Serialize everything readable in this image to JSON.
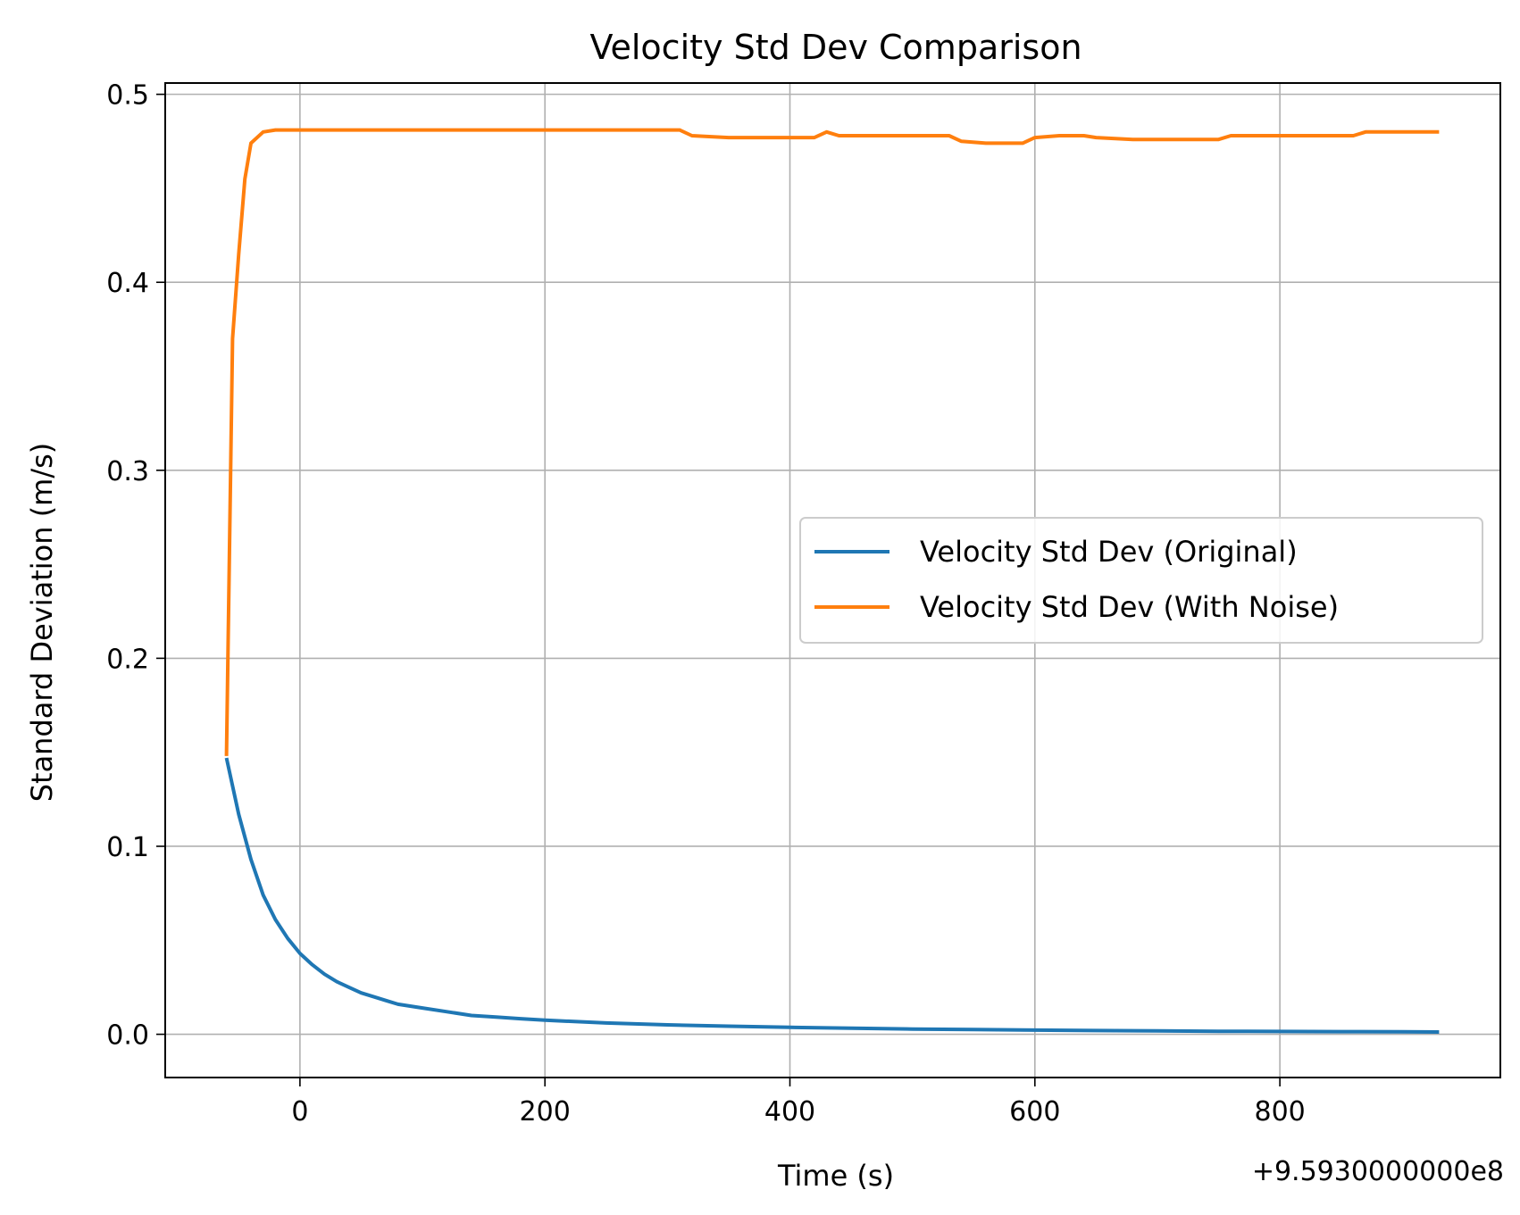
{
  "chart_data": {
    "type": "line",
    "title": "Velocity Std Dev Comparison",
    "xlabel": "Time (s)",
    "ylabel": "Standard Deviation (m/s)",
    "x_offset_label": "+9.5930000000e8",
    "xlim": [
      -110,
      980
    ],
    "ylim": [
      -0.023,
      0.506
    ],
    "xticks": [
      0,
      200,
      400,
      600,
      800
    ],
    "xtick_labels": [
      "0",
      "200",
      "400",
      "600",
      "800"
    ],
    "yticks": [
      0.0,
      0.1,
      0.2,
      0.3,
      0.4,
      0.5
    ],
    "ytick_labels": [
      "0.0",
      "0.1",
      "0.2",
      "0.3",
      "0.4",
      "0.5"
    ],
    "grid": true,
    "legend_position": "center-right",
    "series": [
      {
        "name": "Velocity Std Dev (Original)",
        "color": "#1f77b4",
        "x": [
          -60,
          -50,
          -40,
          -30,
          -20,
          -10,
          0,
          10,
          20,
          30,
          40,
          50,
          60,
          70,
          80,
          90,
          100,
          120,
          140,
          160,
          180,
          200,
          250,
          300,
          350,
          400,
          450,
          500,
          550,
          600,
          650,
          700,
          750,
          800,
          850,
          900,
          930
        ],
        "y": [
          0.147,
          0.117,
          0.093,
          0.074,
          0.061,
          0.051,
          0.043,
          0.037,
          0.032,
          0.028,
          0.025,
          0.022,
          0.02,
          0.018,
          0.016,
          0.015,
          0.014,
          0.012,
          0.01,
          0.0092,
          0.0083,
          0.0075,
          0.006,
          0.005,
          0.0043,
          0.0037,
          0.0032,
          0.0028,
          0.0025,
          0.0022,
          0.002,
          0.0018,
          0.0016,
          0.0015,
          0.0014,
          0.0013,
          0.0012
        ]
      },
      {
        "name": "Velocity Std Dev (With Noise)",
        "color": "#ff7f0e",
        "x": [
          -60,
          -55,
          -50,
          -45,
          -40,
          -30,
          -20,
          0,
          10,
          20,
          50,
          100,
          150,
          200,
          250,
          300,
          310,
          320,
          350,
          400,
          420,
          430,
          440,
          500,
          530,
          540,
          560,
          570,
          590,
          600,
          620,
          640,
          650,
          680,
          700,
          750,
          760,
          800,
          860,
          870,
          900,
          930
        ],
        "y": [
          0.148,
          0.37,
          0.415,
          0.455,
          0.474,
          0.48,
          0.481,
          0.481,
          0.481,
          0.481,
          0.481,
          0.481,
          0.481,
          0.481,
          0.481,
          0.481,
          0.481,
          0.478,
          0.477,
          0.477,
          0.477,
          0.48,
          0.478,
          0.478,
          0.478,
          0.475,
          0.474,
          0.474,
          0.474,
          0.477,
          0.478,
          0.478,
          0.477,
          0.476,
          0.476,
          0.476,
          0.478,
          0.478,
          0.478,
          0.48,
          0.48,
          0.48
        ]
      }
    ]
  }
}
